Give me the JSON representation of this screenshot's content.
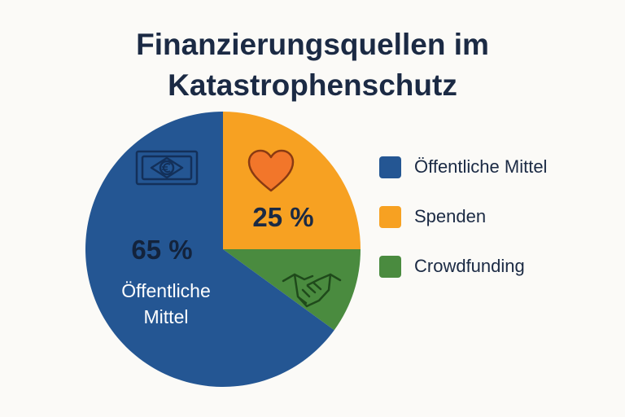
{
  "chart_data": {
    "type": "pie",
    "title_lines": [
      "Finanzierungsquellen im",
      "Katastrophenschutz"
    ],
    "slices": [
      {
        "label": "Öffentliche Mittel",
        "value": 65,
        "color": "#245693",
        "value_label": "65 %",
        "inner_label_lines": [
          "Öffentliche",
          "Mittel"
        ],
        "icon": "euro-banknote-icon"
      },
      {
        "label": "Spenden",
        "value": 25,
        "color": "#f7a122",
        "value_label": "25 %",
        "icon": "heart-icon"
      },
      {
        "label": "Crowdfunding",
        "value": 10,
        "color": "#4a8b3f",
        "icon": "handshake-icon"
      }
    ],
    "legend": {
      "placement": "right",
      "items": [
        {
          "label": "Öffentliche Mittel",
          "color": "#245693"
        },
        {
          "label": "Spenden",
          "color": "#f7a122"
        },
        {
          "label": "Crowdfunding",
          "color": "#4a8b3f"
        }
      ]
    }
  }
}
